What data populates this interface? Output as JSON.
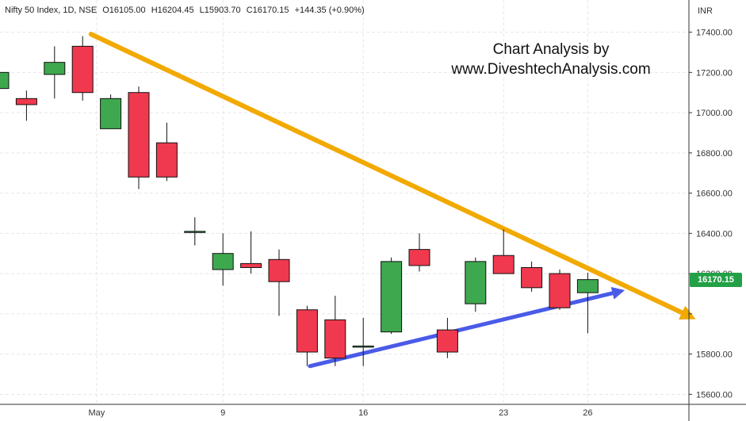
{
  "header": {
    "symbol": "Nifty 50 Index, 1D, NSE",
    "open": "O16105.00",
    "high": "H16204.45",
    "low": "L15903.70",
    "close": "C16170.15",
    "change": "+144.35 (+0.90%)"
  },
  "watermark": {
    "line1": "Chart Analysis by",
    "line2": "www.DiveshtechAnalysis.com"
  },
  "currency": "INR",
  "last_price": "16170.15",
  "colors": {
    "up": "#3ea84f",
    "down": "#f0394e",
    "trendline_resistance": "#f2a900",
    "trendline_support": "#4a5be8",
    "last_price_badge": "#22a046"
  },
  "chart_data": {
    "type": "candlestick",
    "title": "",
    "y_ticks": [
      15600,
      15800,
      16000,
      16200,
      16400,
      16600,
      16800,
      17000,
      17200,
      17400
    ],
    "y_tick_labels": [
      "15600.00",
      "15800.00",
      "",
      "16200.00",
      "16400.00",
      "16600.00",
      "16800.00",
      "17000.00",
      "17200.00",
      "17400.00"
    ],
    "x_labels": [
      {
        "index": 3.5,
        "label": "May"
      },
      {
        "index": 8,
        "label": "9"
      },
      {
        "index": 13,
        "label": "16"
      },
      {
        "index": 18,
        "label": "23"
      },
      {
        "index": 21,
        "label": "26"
      }
    ],
    "ylim": [
      15550,
      17560
    ],
    "grid": true,
    "candles": [
      {
        "o": 17120,
        "h": 17250,
        "l": 17060,
        "c": 17200
      },
      {
        "o": 17070,
        "h": 17110,
        "l": 16960,
        "c": 17040
      },
      {
        "o": 17190,
        "h": 17330,
        "l": 17070,
        "c": 17250
      },
      {
        "o": 17330,
        "h": 17380,
        "l": 17060,
        "c": 17100
      },
      {
        "o": 16920,
        "h": 17090,
        "l": 16920,
        "c": 17070
      },
      {
        "o": 17100,
        "h": 17130,
        "l": 16620,
        "c": 16680
      },
      {
        "o": 16850,
        "h": 16950,
        "l": 16660,
        "c": 16680
      },
      {
        "o": 16410,
        "h": 16480,
        "l": 16340,
        "c": 16410
      },
      {
        "o": 16220,
        "h": 16400,
        "l": 16140,
        "c": 16300
      },
      {
        "o": 16250,
        "h": 16410,
        "l": 16200,
        "c": 16230
      },
      {
        "o": 16270,
        "h": 16320,
        "l": 15990,
        "c": 16160
      },
      {
        "o": 16020,
        "h": 16040,
        "l": 15740,
        "c": 15810
      },
      {
        "o": 15970,
        "h": 16090,
        "l": 15740,
        "c": 15780
      },
      {
        "o": 15840,
        "h": 15980,
        "l": 15740,
        "c": 15840
      },
      {
        "o": 15910,
        "h": 16280,
        "l": 15900,
        "c": 16260
      },
      {
        "o": 16320,
        "h": 16400,
        "l": 16210,
        "c": 16240
      },
      {
        "o": 15920,
        "h": 15980,
        "l": 15780,
        "c": 15810
      },
      {
        "o": 16050,
        "h": 16280,
        "l": 16010,
        "c": 16260
      },
      {
        "o": 16290,
        "h": 16420,
        "l": 16200,
        "c": 16200
      },
      {
        "o": 16230,
        "h": 16260,
        "l": 16110,
        "c": 16130
      },
      {
        "o": 16200,
        "h": 16220,
        "l": 16020,
        "c": 16030
      },
      {
        "o": 16105,
        "h": 16204.45,
        "l": 15903.7,
        "c": 16170.15
      }
    ],
    "trendlines": [
      {
        "name": "resistance",
        "from": {
          "index": 3.3,
          "value": 17390
        },
        "to": {
          "index": 24.6,
          "value": 15990
        },
        "arrow": true
      },
      {
        "name": "support",
        "from": {
          "index": 11.1,
          "value": 15740
        },
        "to": {
          "index": 22.1,
          "value": 16110
        },
        "arrow": true
      }
    ]
  }
}
